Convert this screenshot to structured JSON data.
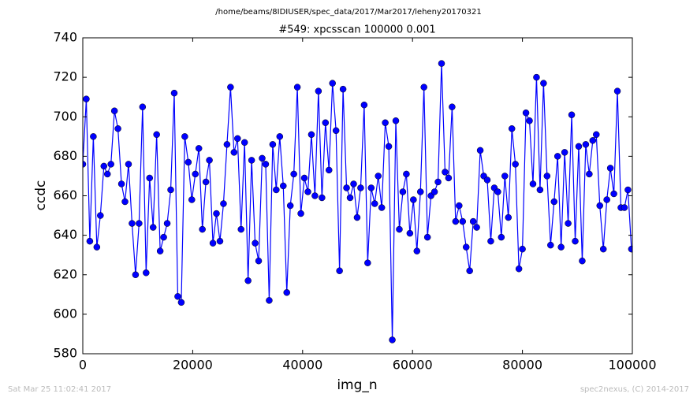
{
  "chart_data": {
    "type": "line",
    "header": "/home/beams/8IDIUSER/spec_data/2017/Mar2017/leheny20170321",
    "title": "#549: xpcsscan 100000 0.001",
    "xlabel": "img_n",
    "ylabel": "ccdc",
    "footer_left": "Sat Mar 25 11:02:41 2017",
    "footer_right": "spec2nexus, (C) 2014-2017",
    "xlim": [
      0,
      100000
    ],
    "xticks": [
      0,
      20000,
      40000,
      60000,
      80000,
      100000
    ],
    "ylim": [
      580,
      740
    ],
    "yticks": [
      580,
      600,
      620,
      640,
      660,
      680,
      700,
      720,
      740
    ],
    "x": [
      0,
      640,
      1280,
      1920,
      2560,
      3200,
      3840,
      4480,
      5120,
      5760,
      6400,
      7040,
      7680,
      8320,
      8960,
      9600,
      10240,
      10880,
      11520,
      12160,
      12800,
      13440,
      14080,
      14720,
      15360,
      16000,
      16640,
      17280,
      17920,
      18560,
      19200,
      19840,
      20480,
      21120,
      21760,
      22400,
      23040,
      23680,
      24320,
      24960,
      25600,
      26240,
      26880,
      27520,
      28160,
      28800,
      29440,
      30080,
      30720,
      31360,
      32000,
      32640,
      33280,
      33920,
      34560,
      35200,
      35840,
      36480,
      37120,
      37760,
      38400,
      39040,
      39680,
      40320,
      40960,
      41600,
      42240,
      42880,
      43520,
      44160,
      44800,
      45440,
      46080,
      46720,
      47360,
      48000,
      48640,
      49280,
      49920,
      50560,
      51200,
      51840,
      52480,
      53120,
      53760,
      54400,
      55040,
      55680,
      56320,
      56960,
      57600,
      58240,
      58880,
      59520,
      60160,
      60800,
      61440,
      62080,
      62720,
      63360,
      64000,
      64640,
      65280,
      65920,
      66560,
      67200,
      67840,
      68480,
      69120,
      69760,
      70400,
      71040,
      71680,
      72320,
      72960,
      73600,
      74240,
      74880,
      75520,
      76160,
      76800,
      77440,
      78080,
      78720,
      79360,
      80000,
      80640,
      81280,
      81920,
      82560,
      83200,
      83840,
      84480,
      85120,
      85760,
      86400,
      87040,
      87680,
      88320,
      88960,
      89600,
      90240,
      90880,
      91520,
      92160,
      92800,
      93440,
      94080,
      94720,
      95360,
      96000,
      96640,
      97280,
      97920,
      98560,
      99200,
      99840
    ],
    "series": [
      {
        "color": "#0000ff",
        "values": [
          676,
          709,
          637,
          690,
          634,
          650,
          675,
          671,
          676,
          703,
          694,
          666,
          657,
          676,
          646,
          620,
          646,
          705,
          621,
          669,
          644,
          691,
          632,
          639,
          646,
          663,
          712,
          609,
          606,
          690,
          677,
          658,
          671,
          684,
          643,
          667,
          678,
          636,
          651,
          637,
          656,
          686,
          715,
          682,
          689,
          643,
          687,
          617,
          678,
          636,
          627,
          679,
          676,
          607,
          686,
          663,
          690,
          665,
          611,
          655,
          671,
          715,
          651,
          669,
          662,
          691,
          660,
          713,
          659,
          697,
          673,
          717,
          693,
          622,
          714,
          664,
          659,
          666,
          649,
          664,
          706,
          626,
          664,
          656,
          670,
          654,
          697,
          685,
          587,
          698,
          643,
          662,
          671,
          641,
          658,
          632,
          662,
          715,
          639,
          660,
          662,
          667,
          727,
          672,
          669,
          705,
          647,
          655,
          647,
          634,
          622,
          647,
          644,
          683,
          670,
          668,
          637,
          664,
          662,
          639,
          670,
          649,
          694,
          676,
          623,
          633,
          702,
          698,
          666,
          720,
          663,
          717,
          670,
          635,
          657,
          680,
          634,
          682,
          646,
          701,
          637,
          685,
          627,
          686,
          671,
          688,
          691,
          655,
          633,
          658,
          674,
          661,
          713,
          654,
          654,
          663,
          633
        ]
      }
    ]
  }
}
